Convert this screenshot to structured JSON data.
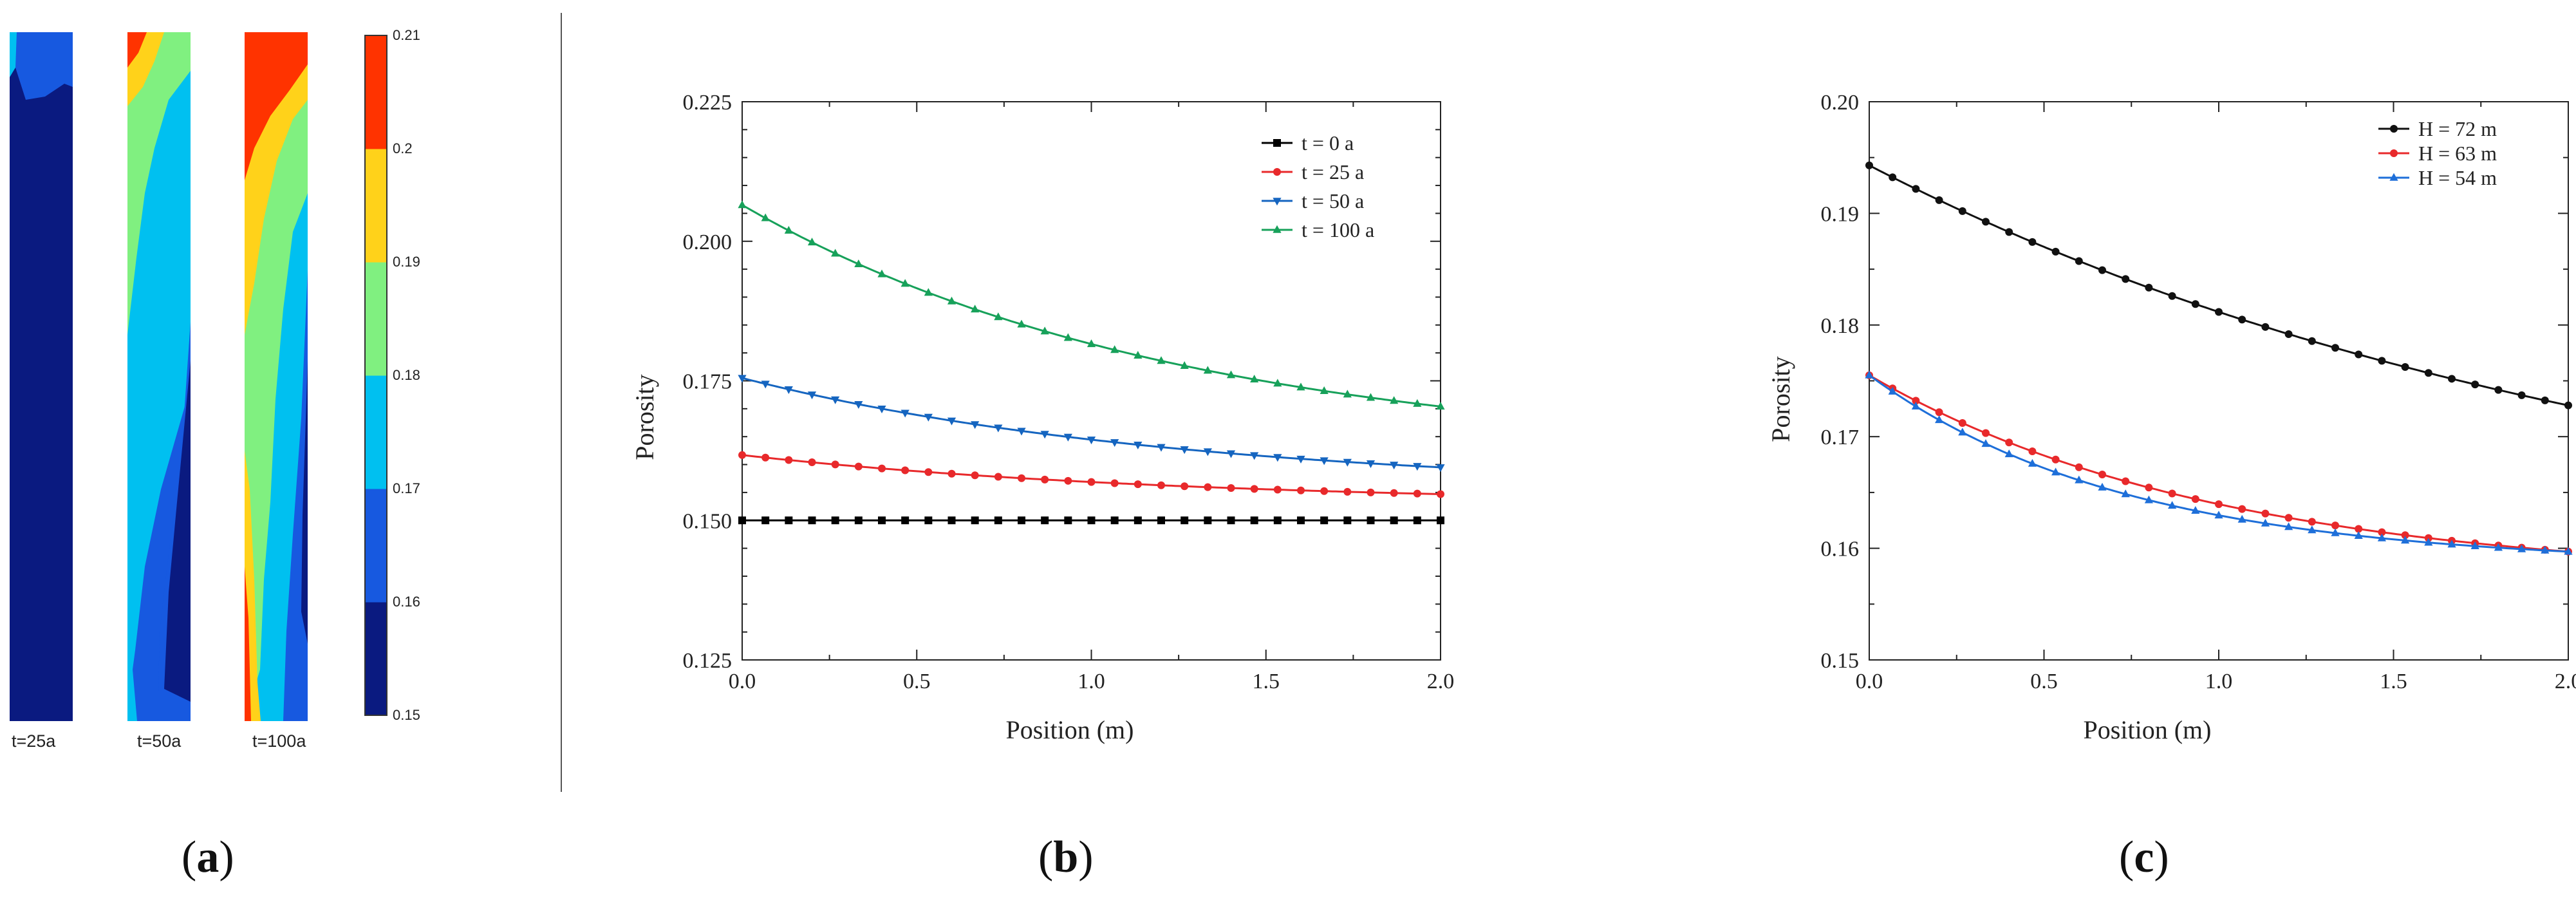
{
  "panels": [
    {
      "label_open": "(",
      "label_letter": "a",
      "label_close": ")"
    },
    {
      "label_open": "(",
      "label_letter": "b",
      "label_close": ")"
    },
    {
      "label_open": "(",
      "label_letter": "c",
      "label_close": ")"
    }
  ],
  "colorbar": {
    "ticks": [
      "0.21",
      "0.2",
      "0.19",
      "0.18",
      "0.17",
      "0.16",
      "0.15"
    ],
    "bands_bottom_to_top": [
      "#0a1a80",
      "#1759e0",
      "#00c0f0",
      "#80f080",
      "#ffd21a",
      "#ff3300"
    ]
  },
  "contour_captions": [
    "t=25a",
    "t=50a",
    "t=100a"
  ],
  "chart_data": [
    {
      "type": "heatmap",
      "panel": "a",
      "snapshots": [
        "t=25a",
        "t=50a",
        "t=100a"
      ],
      "colorbar_range": [
        0.15,
        0.21
      ],
      "colorbar_levels": [
        0.15,
        0.16,
        0.17,
        0.18,
        0.19,
        0.2,
        0.21
      ]
    },
    {
      "type": "line",
      "panel": "b",
      "title": "",
      "xlabel": "Position (m)",
      "ylabel": "Porosity",
      "xlim": [
        0,
        2.0
      ],
      "ylim": [
        0.125,
        0.225
      ],
      "xticks": [
        "0.0",
        "0.5",
        "1.0",
        "1.5",
        "2.0"
      ],
      "yticks": [
        "0.125",
        "0.150",
        "0.175",
        "0.200",
        "0.225"
      ],
      "legend_position": "top-right",
      "series": [
        {
          "name": "t = 0 a",
          "color": "#000000",
          "marker": "square",
          "x0": 0.0,
          "x1": 2.0,
          "y0": 0.15,
          "y1": 0.15,
          "decay": 0.8,
          "asym": 0.15
        },
        {
          "name": "t = 25 a",
          "color": "#e8292b",
          "marker": "circle",
          "x0": 0.0,
          "x1": 2.0,
          "y0": 0.1617,
          "y1": 0.1547,
          "decay": 0.8,
          "asym": 0.154
        },
        {
          "name": "t = 50 a",
          "color": "#1565c0",
          "marker": "triangle-down",
          "x0": 0.0,
          "x1": 2.0,
          "y0": 0.1755,
          "y1": 0.1595,
          "decay": 0.8,
          "asym": 0.157
        },
        {
          "name": "t = 100 a",
          "color": "#17a15a",
          "marker": "triangle-up",
          "x0": 0.0,
          "x1": 2.0,
          "y0": 0.2065,
          "y1": 0.1704,
          "decay": 0.8,
          "asym": 0.166
        }
      ]
    },
    {
      "type": "line",
      "panel": "c",
      "title": "",
      "xlabel": "Position (m)",
      "ylabel": "Porosity",
      "xlim": [
        0,
        2.0
      ],
      "ylim": [
        0.15,
        0.2
      ],
      "xticks": [
        "0.0",
        "0.5",
        "1.0",
        "1.5",
        "2.0"
      ],
      "yticks": [
        "0.15",
        "0.16",
        "0.17",
        "0.18",
        "0.19",
        "0.20"
      ],
      "legend_position": "top-right",
      "series": [
        {
          "name": "H = 72 m",
          "color": "#111111",
          "marker": "circle",
          "x0": 0.0,
          "x1": 2.0,
          "y0": 0.1943,
          "y1": 0.1728,
          "decay": 0.45,
          "asym": 0.16
        },
        {
          "name": "H = 63 m",
          "color": "#e8292b",
          "marker": "circle",
          "x0": 0.0,
          "x1": 2.0,
          "y0": 0.1755,
          "y1": 0.1597,
          "decay": 1.0,
          "asym": 0.158
        },
        {
          "name": "H = 54 m",
          "color": "#1e6fd9",
          "marker": "triangle-up",
          "x0": 0.0,
          "x1": 2.0,
          "y0": 0.1755,
          "y1": 0.1597,
          "decay": 1.35,
          "asym": 0.1592
        }
      ]
    }
  ]
}
